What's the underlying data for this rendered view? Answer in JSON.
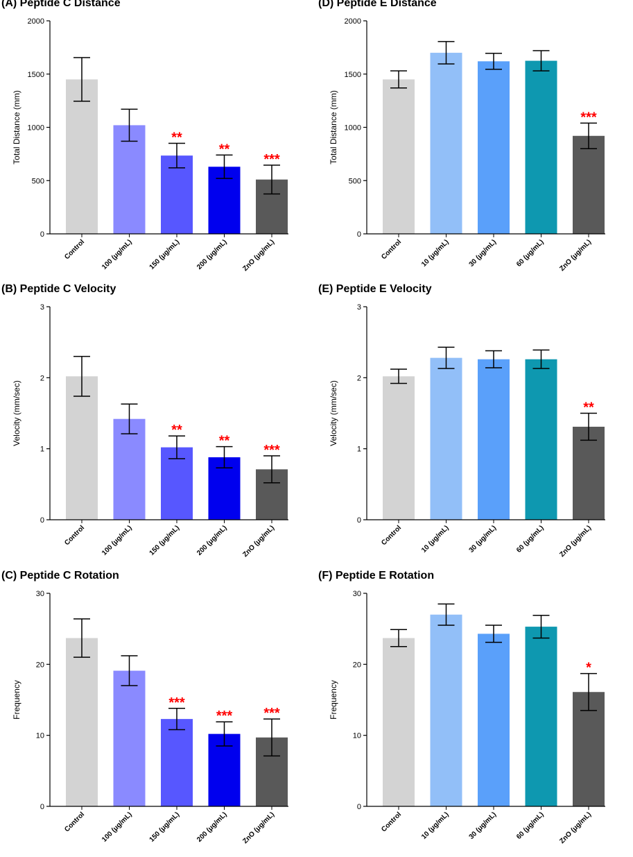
{
  "colors": {
    "significance": "#ff0000",
    "axis": "#000000"
  },
  "chart_data": [
    {
      "id": "A",
      "type": "bar",
      "title": "(A) Peptide C Distance",
      "ylabel": "Total Distance (mm)",
      "ylim": [
        0,
        2000
      ],
      "yticks": [
        0,
        500,
        1000,
        1500,
        2000
      ],
      "categories": [
        "Control",
        "100 (μg/mL)",
        "150 (μg/mL)",
        "200 (μg/mL)",
        "ZnO (μg/mL)"
      ],
      "values": [
        1450,
        1020,
        735,
        630,
        510
      ],
      "errors": [
        205,
        150,
        115,
        110,
        135
      ],
      "significance": [
        "",
        "",
        "**",
        "**",
        "***"
      ],
      "colors": [
        "#d3d3d3",
        "#8a8aff",
        "#5757ff",
        "#0000ee",
        "#595959"
      ]
    },
    {
      "id": "D",
      "type": "bar",
      "title": "(D) Peptide E Distance",
      "ylabel": "Total Distance (mm)",
      "ylim": [
        0,
        2000
      ],
      "yticks": [
        0,
        500,
        1000,
        1500,
        2000
      ],
      "categories": [
        "Control",
        "10 (μg/mL)",
        "30 (μg/mL)",
        "60 (μg/mL)",
        "ZnO (μg/mL)"
      ],
      "values": [
        1450,
        1700,
        1620,
        1625,
        920
      ],
      "errors": [
        80,
        105,
        75,
        95,
        120
      ],
      "significance": [
        "",
        "",
        "",
        "",
        "***"
      ],
      "colors": [
        "#d3d3d3",
        "#92bff8",
        "#5aa0fa",
        "#0e98b0",
        "#595959"
      ]
    },
    {
      "id": "B",
      "type": "bar",
      "title": "(B) Peptide C Velocity",
      "ylabel": "Velocity (mm/sec)",
      "ylim": [
        0,
        3
      ],
      "yticks": [
        0,
        1,
        2,
        3
      ],
      "categories": [
        "Control",
        "100 (μg/mL)",
        "150 (μg/mL)",
        "200 (μg/mL)",
        "ZnO (μg/mL)"
      ],
      "values": [
        2.02,
        1.42,
        1.02,
        0.88,
        0.71
      ],
      "errors": [
        0.28,
        0.21,
        0.16,
        0.15,
        0.19
      ],
      "significance": [
        "",
        "",
        "**",
        "**",
        "***"
      ],
      "colors": [
        "#d3d3d3",
        "#8a8aff",
        "#5757ff",
        "#0000ee",
        "#595959"
      ]
    },
    {
      "id": "E",
      "type": "bar",
      "title": "(E) Peptide E Velocity",
      "ylabel": "Velocity (mm/sec)",
      "ylim": [
        0,
        3
      ],
      "yticks": [
        0,
        1,
        2,
        3
      ],
      "categories": [
        "Control",
        "10 (μg/mL)",
        "30 (μg/mL)",
        "60 (μg/mL)",
        "ZnO (μg/mL)"
      ],
      "values": [
        2.02,
        2.28,
        2.26,
        2.26,
        1.31
      ],
      "errors": [
        0.1,
        0.15,
        0.12,
        0.13,
        0.19
      ],
      "significance": [
        "",
        "",
        "",
        "",
        "**"
      ],
      "colors": [
        "#d3d3d3",
        "#92bff8",
        "#5aa0fa",
        "#0e98b0",
        "#595959"
      ]
    },
    {
      "id": "C",
      "type": "bar",
      "title": "(C) Peptide C Rotation",
      "ylabel": "Frequency",
      "ylim": [
        0,
        30
      ],
      "yticks": [
        0,
        10,
        20,
        30
      ],
      "categories": [
        "Control",
        "100 (μg/mL)",
        "150 (μg/mL)",
        "200 (μg/mL)",
        "ZnO (μg/mL)"
      ],
      "values": [
        23.7,
        19.1,
        12.3,
        10.2,
        9.7
      ],
      "errors": [
        2.7,
        2.1,
        1.5,
        1.7,
        2.6
      ],
      "significance": [
        "",
        "",
        "***",
        "***",
        "***"
      ],
      "colors": [
        "#d3d3d3",
        "#8a8aff",
        "#5757ff",
        "#0000ee",
        "#595959"
      ]
    },
    {
      "id": "F",
      "type": "bar",
      "title": "(F) Peptide E Rotation",
      "ylabel": "Frequency",
      "ylim": [
        0,
        30
      ],
      "yticks": [
        0,
        10,
        20,
        30
      ],
      "categories": [
        "Control",
        "10 (μg/mL)",
        "30 (μg/mL)",
        "60 (μg/mL)",
        "ZnO (μg/mL)"
      ],
      "values": [
        23.7,
        27.0,
        24.3,
        25.3,
        16.1
      ],
      "errors": [
        1.2,
        1.5,
        1.2,
        1.6,
        2.6
      ],
      "significance": [
        "",
        "",
        "",
        "",
        "*"
      ],
      "colors": [
        "#d3d3d3",
        "#92bff8",
        "#5aa0fa",
        "#0e98b0",
        "#595959"
      ]
    }
  ]
}
